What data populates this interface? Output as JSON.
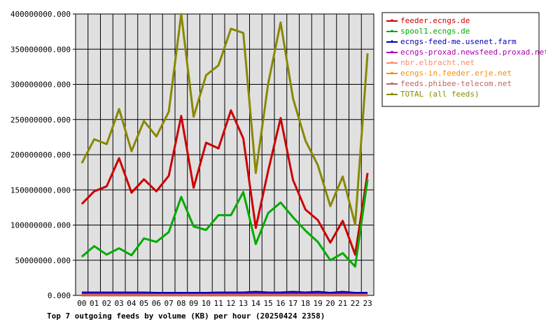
{
  "chart_data": {
    "type": "line",
    "title": "Top 7 outgoing feeds by volume (KB) per hour (20250424 2358)",
    "x": [
      "00",
      "01",
      "02",
      "03",
      "04",
      "05",
      "06",
      "07",
      "08",
      "09",
      "10",
      "11",
      "12",
      "13",
      "14",
      "15",
      "16",
      "17",
      "18",
      "19",
      "20",
      "21",
      "22",
      "23"
    ],
    "ylim": [
      0,
      400000000
    ],
    "yticks": [
      "0.000",
      "50000000.000",
      "100000000.000",
      "150000000.000",
      "200000000.000",
      "250000000.000",
      "300000000.000",
      "350000000.000",
      "400000000.000"
    ],
    "ytick_values": [
      0,
      50000000,
      100000000,
      150000000,
      200000000,
      250000000,
      300000000,
      350000000,
      400000000
    ],
    "grid": true,
    "legend_position": "top-right",
    "series": [
      {
        "name": "feeder.ecngs.de",
        "color": "#cc0000",
        "values": [
          130000000,
          148000000,
          155000000,
          195000000,
          146000000,
          165000000,
          148000000,
          170000000,
          255000000,
          153000000,
          217000000,
          209000000,
          263000000,
          223000000,
          96000000,
          177000000,
          252000000,
          164000000,
          122000000,
          107000000,
          75000000,
          106000000,
          58000000,
          174000000
        ]
      },
      {
        "name": "spool1.ecngs.de",
        "color": "#00aa00",
        "values": [
          55000000,
          70000000,
          58000000,
          67000000,
          57000000,
          81000000,
          76000000,
          90000000,
          140000000,
          98000000,
          93000000,
          114000000,
          114000000,
          147000000,
          73000000,
          117000000,
          132000000,
          111000000,
          92000000,
          76000000,
          50000000,
          60000000,
          41000000,
          165000000
        ]
      },
      {
        "name": "ecngs-feed-me.usenet.farm",
        "color": "#0000bb",
        "values": [
          4000000,
          4000000,
          4000000,
          4000000,
          4000000,
          4000000,
          3500000,
          3500000,
          3500000,
          3500000,
          3500000,
          4000000,
          4000000,
          4000000,
          5000000,
          4000000,
          4000000,
          5000000,
          4000000,
          5000000,
          3500000,
          5000000,
          3500000,
          3500000
        ]
      },
      {
        "name": "ecngs-proxad.newsfeed.proxad.net",
        "color": "#aa00aa",
        "values": [
          2000000,
          2000000,
          2000000,
          2000000,
          2000000,
          2000000,
          1500000,
          1500000,
          1500000,
          1500000,
          1500000,
          2000000,
          2000000,
          2000000,
          2500000,
          2000000,
          2000000,
          2500000,
          2000000,
          2500000,
          1500000,
          2500000,
          1500000,
          1500000
        ]
      },
      {
        "name": "nbr.elbracht.net",
        "color": "#ff8866",
        "values": [
          500000,
          500000,
          500000,
          500000,
          500000,
          500000,
          500000,
          500000,
          500000,
          500000,
          500000,
          500000,
          500000,
          500000,
          500000,
          500000,
          500000,
          500000,
          500000,
          500000,
          500000,
          500000,
          500000,
          500000
        ]
      },
      {
        "name": "ecngs-in.feeder.erje.net",
        "color": "#ff8800",
        "values": [
          300000,
          300000,
          300000,
          300000,
          300000,
          300000,
          300000,
          300000,
          300000,
          300000,
          300000,
          300000,
          300000,
          300000,
          300000,
          300000,
          300000,
          300000,
          300000,
          300000,
          300000,
          300000,
          300000,
          300000
        ]
      },
      {
        "name": "feeds.phibee-telecom.net",
        "color": "#bb6666",
        "values": [
          100000,
          100000,
          100000,
          100000,
          100000,
          100000,
          100000,
          100000,
          100000,
          100000,
          100000,
          100000,
          100000,
          100000,
          100000,
          100000,
          100000,
          100000,
          100000,
          100000,
          100000,
          100000,
          100000,
          100000
        ]
      },
      {
        "name": "TOTAL (all feeds)",
        "color": "#888800",
        "values": [
          188000000,
          222000000,
          215000000,
          265000000,
          205000000,
          248000000,
          226000000,
          261000000,
          400000000,
          254000000,
          313000000,
          327000000,
          379000000,
          373000000,
          174000000,
          301000000,
          388000000,
          280000000,
          220000000,
          185000000,
          127000000,
          169000000,
          101000000,
          344000000
        ]
      }
    ]
  }
}
